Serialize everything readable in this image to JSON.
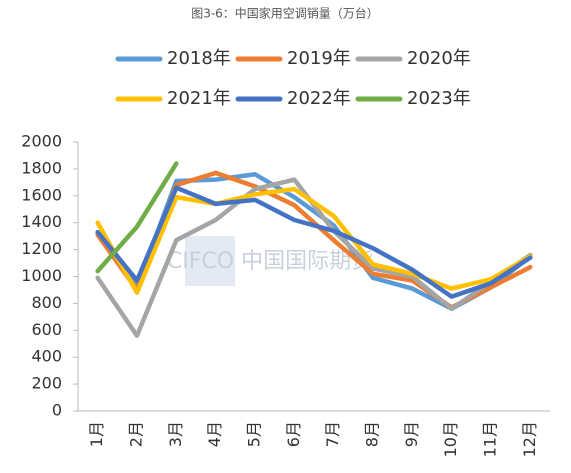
{
  "chart_data": {
    "type": "line",
    "title": "图3-6：中国家用空调销量（万台）",
    "watermark": "CIFCO 中国国际期货",
    "categories": [
      "1月",
      "2月",
      "3月",
      "4月",
      "5月",
      "6月",
      "7月",
      "8月",
      "9月",
      "10月",
      "11月",
      "12月"
    ],
    "series": [
      {
        "name": "2018年",
        "color": "#5b9bd5",
        "values": [
          1320,
          920,
          1710,
          1720,
          1760,
          1590,
          1380,
          990,
          910,
          760,
          920,
          1150
        ]
      },
      {
        "name": "2019年",
        "color": "#ed7d31",
        "values": [
          1310,
          900,
          1680,
          1770,
          1670,
          1530,
          1270,
          1020,
          970,
          770,
          920,
          1070
        ]
      },
      {
        "name": "2020年",
        "color": "#a5a5a5",
        "values": [
          990,
          560,
          1270,
          1420,
          1650,
          1720,
          1340,
          1060,
          1000,
          760,
          960,
          1160
        ]
      },
      {
        "name": "2021年",
        "color": "#ffc000",
        "values": [
          1400,
          880,
          1590,
          1540,
          1610,
          1650,
          1450,
          1090,
          1020,
          910,
          980,
          1150
        ]
      },
      {
        "name": "2022年",
        "color": "#4472c4",
        "values": [
          1330,
          970,
          1660,
          1540,
          1570,
          1420,
          1340,
          1210,
          1050,
          850,
          950,
          1140
        ]
      },
      {
        "name": "2023年",
        "color": "#70ad47",
        "values": [
          1040,
          1370,
          1840,
          null,
          null,
          null,
          null,
          null,
          null,
          null,
          null,
          null
        ]
      }
    ],
    "ylim": [
      0,
      2000
    ],
    "yticks": [
      0,
      200,
      400,
      600,
      800,
      1000,
      1200,
      1400,
      1600,
      1800,
      2000
    ],
    "grid": false
  }
}
